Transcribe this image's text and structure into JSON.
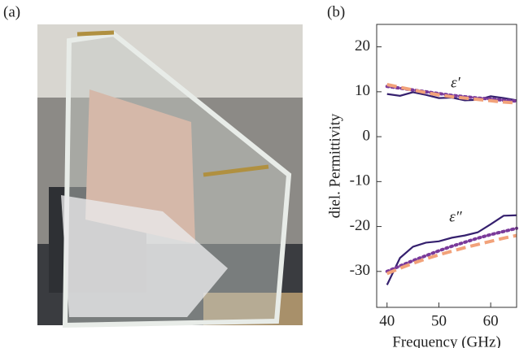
{
  "panel_labels": [
    "(a)",
    "(b)"
  ],
  "chart_data": {
    "type": "line",
    "x_label": "Frequency (GHz)",
    "y_label": "diel. Permittivity",
    "x": [
      40,
      42.5,
      45,
      47.5,
      50,
      52.5,
      55,
      57.5,
      60,
      62.5,
      65
    ],
    "series": [
      {
        "color": "#35206e",
        "style": "solid",
        "values": [
          9.5,
          9.1,
          9.9,
          9.3,
          8.6,
          8.7,
          8.1,
          8.2,
          9.0,
          8.6,
          8.1
        ]
      },
      {
        "color": "#7a3a9a",
        "style": "dotted",
        "values": [
          11.2,
          10.8,
          10.4,
          10.0,
          9.6,
          9.2,
          8.9,
          8.6,
          8.4,
          8.1,
          7.9
        ]
      },
      {
        "color": "#f2a27a",
        "style": "dashed",
        "values": [
          11.6,
          11.0,
          10.4,
          9.8,
          9.3,
          8.9,
          8.6,
          8.3,
          8.0,
          7.7,
          7.5
        ]
      },
      {
        "color": "#35206e",
        "style": "solid",
        "values": [
          -33.0,
          -27.0,
          -24.5,
          -23.6,
          -23.3,
          -22.5,
          -22.0,
          -21.3,
          -19.5,
          -17.6,
          -17.5
        ]
      },
      {
        "color": "#7a3a9a",
        "style": "dotted",
        "values": [
          -30.0,
          -28.8,
          -27.6,
          -26.5,
          -25.4,
          -24.4,
          -23.5,
          -22.6,
          -21.8,
          -21.1,
          -20.4
        ]
      },
      {
        "color": "#f2a27a",
        "style": "dashed",
        "values": [
          -30.5,
          -29.3,
          -28.2,
          -27.2,
          -26.3,
          -25.5,
          -24.7,
          -24.0,
          -23.3,
          -22.6,
          -22.0
        ]
      }
    ],
    "annotations": [
      {
        "text": "ε′"
      },
      {
        "text": "ε″"
      }
    ],
    "xlim": [
      38,
      65
    ],
    "xticks": [
      40,
      50,
      60
    ],
    "ylim": [
      -38,
      25
    ],
    "yticks": [
      -30,
      -20,
      -10,
      0,
      10,
      20
    ]
  }
}
